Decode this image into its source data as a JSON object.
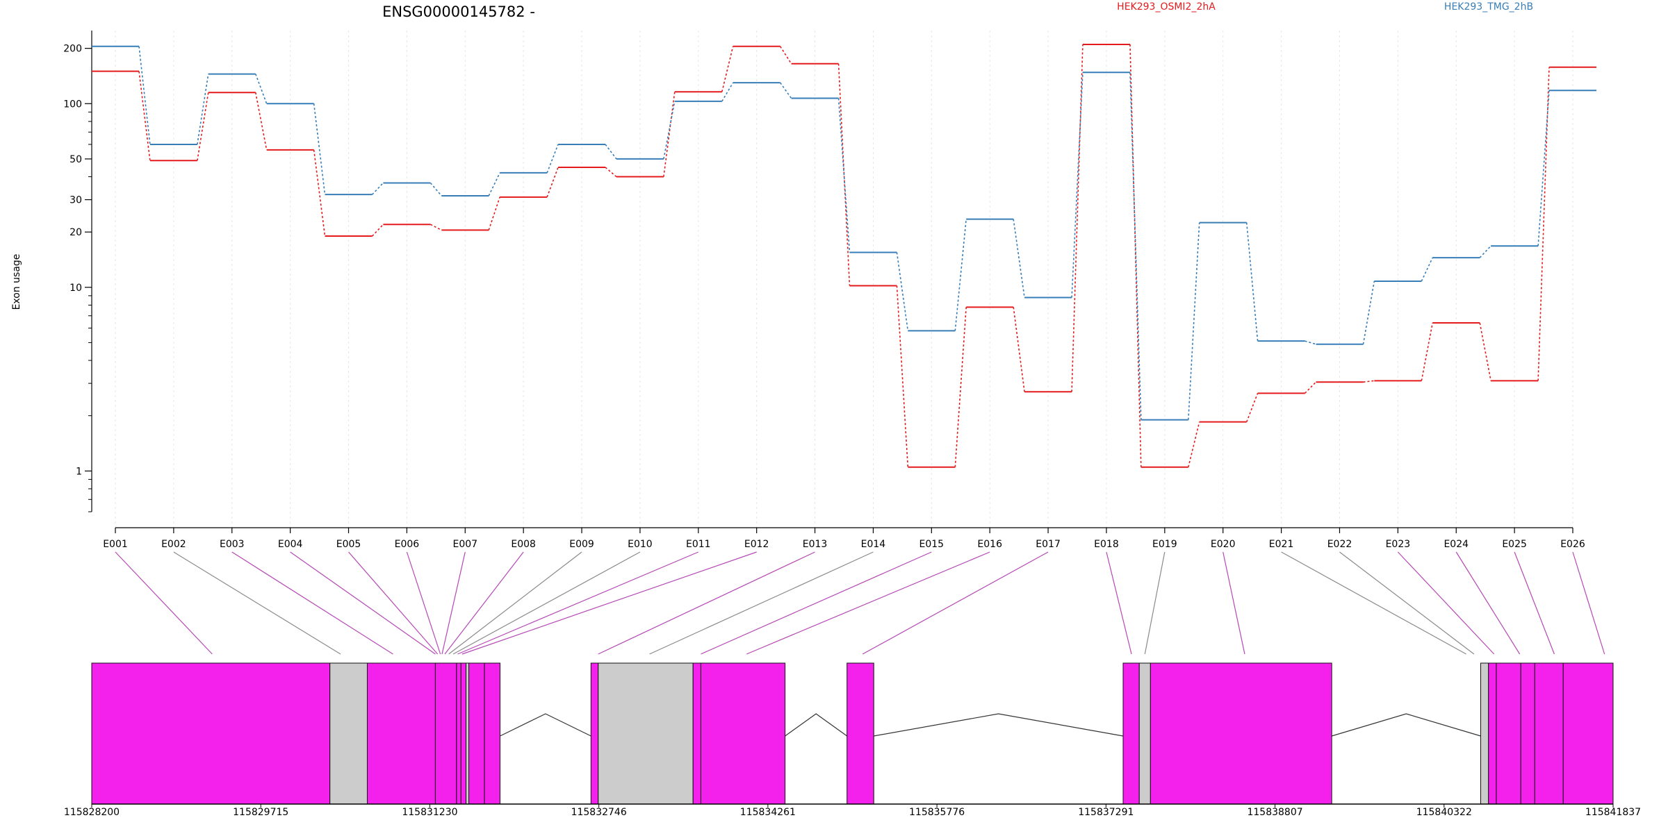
{
  "chart_data": {
    "type": "line",
    "title": "ENSG00000145782 -",
    "ylabel": "Exon usage",
    "xlabel": "",
    "yscale": "log",
    "ylim": [
      0.6,
      250
    ],
    "yticks": [
      1,
      10,
      20,
      30,
      50,
      100,
      200
    ],
    "grid": "vertical-dotted",
    "legend_position": "top-right",
    "categories": [
      "E001",
      "E002",
      "E003",
      "E004",
      "E005",
      "E006",
      "E007",
      "E008",
      "E009",
      "E010",
      "E011",
      "E012",
      "E013",
      "E014",
      "E015",
      "E016",
      "E017",
      "E018",
      "E019",
      "E020",
      "E021",
      "E022",
      "E023",
      "E024",
      "E025",
      "E026"
    ],
    "series": [
      {
        "name": "HEK293_OSMI2_2hA",
        "color": "#e41a1c",
        "values": [
          150,
          49,
          115,
          56,
          19,
          22,
          20.5,
          31,
          45,
          40,
          116,
          205,
          165,
          10.2,
          1.05,
          7.8,
          2.7,
          210,
          1.05,
          1.85,
          2.65,
          3.05,
          3.1,
          6.4,
          3.1,
          158
        ]
      },
      {
        "name": "HEK293_TMG_2hB",
        "color": "#377eb8",
        "values": [
          205,
          60,
          145,
          100,
          32,
          37,
          31.5,
          42,
          60,
          50,
          103,
          130,
          107,
          15.5,
          5.8,
          23.5,
          8.8,
          148,
          1.9,
          22.5,
          5.1,
          4.9,
          10.8,
          14.5,
          16.8,
          118
        ]
      }
    ],
    "genome_track": {
      "coord_ticks": [
        115828200,
        115829715,
        115831230,
        115832746,
        115834261,
        115835776,
        115837291,
        115838807,
        115840322,
        115841837
      ],
      "start": 115828200,
      "end": 115841837,
      "exon_color": "#f321eb",
      "grey_exon_color": "#cccccc",
      "segments": [
        {
          "start": 115828200,
          "end": 115830335,
          "color": "magenta"
        },
        {
          "start": 115830335,
          "end": 115830670,
          "color": "grey"
        },
        {
          "start": 115830670,
          "end": 115831280,
          "color": "magenta"
        },
        {
          "start": 115831280,
          "end": 115831470,
          "color": "magenta"
        },
        {
          "start": 115831470,
          "end": 115831510,
          "color": "magenta"
        },
        {
          "start": 115831510,
          "end": 115831555,
          "color": "magenta"
        },
        {
          "start": 115831555,
          "end": 115831580,
          "color": "grey"
        },
        {
          "start": 115831580,
          "end": 115831720,
          "color": "magenta"
        },
        {
          "start": 115831720,
          "end": 115831860,
          "color": "magenta"
        },
        {
          "start": 115832675,
          "end": 115832740,
          "color": "magenta"
        },
        {
          "start": 115832740,
          "end": 115833590,
          "color": "grey"
        },
        {
          "start": 115833590,
          "end": 115833660,
          "color": "magenta"
        },
        {
          "start": 115833660,
          "end": 115834415,
          "color": "magenta"
        },
        {
          "start": 115834970,
          "end": 115835210,
          "color": "magenta"
        },
        {
          "start": 115837445,
          "end": 115837590,
          "color": "magenta"
        },
        {
          "start": 115837590,
          "end": 115837690,
          "color": "grey"
        },
        {
          "start": 115837690,
          "end": 115839315,
          "color": "magenta"
        },
        {
          "start": 115840650,
          "end": 115840720,
          "color": "grey"
        },
        {
          "start": 115840720,
          "end": 115840790,
          "color": "magenta"
        },
        {
          "start": 115840790,
          "end": 115841010,
          "color": "magenta"
        },
        {
          "start": 115841010,
          "end": 115841135,
          "color": "magenta"
        },
        {
          "start": 115841135,
          "end": 115841390,
          "color": "magenta"
        },
        {
          "start": 115841390,
          "end": 115841837,
          "color": "magenta"
        }
      ],
      "introns": [
        {
          "start": 115831860,
          "end": 115832675
        },
        {
          "start": 115834415,
          "end": 115834970
        },
        {
          "start": 115835210,
          "end": 115837445
        },
        {
          "start": 115839315,
          "end": 115840650
        }
      ],
      "connector_targets": [
        115829280,
        115830430,
        115830900,
        115831280,
        115831300,
        115831325,
        115831340,
        115831365,
        115831400,
        115831440,
        115831480,
        115831520,
        115832740,
        115833200,
        115833660,
        115834070,
        115835110,
        115837520,
        115837640,
        115838535,
        115840520,
        115840590,
        115840770,
        115841000,
        115841310,
        115841760
      ],
      "grey_connectors": [
        1,
        8,
        9,
        13,
        18,
        20,
        21
      ]
    }
  }
}
